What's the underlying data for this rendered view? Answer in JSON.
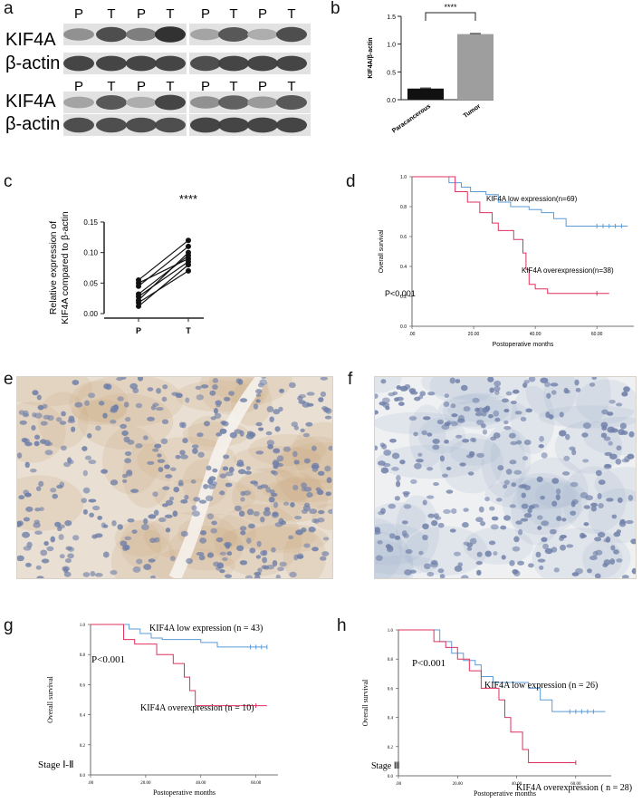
{
  "panels": {
    "a": {
      "letter": "a",
      "lane_labels_top": [
        "P",
        "T",
        "P",
        "T",
        "P",
        "T",
        "P",
        "T"
      ],
      "lane_labels_bottom": [
        "P",
        "T",
        "P",
        "T",
        "P",
        "T",
        "P",
        "T"
      ],
      "row_labels": [
        "KIF4A",
        "β-actin",
        "KIF4A",
        "β-actin"
      ],
      "band_intensity": {
        "kif4a_1": [
          0.45,
          0.8,
          0.55,
          0.95,
          0.35,
          0.75,
          0.3,
          0.8
        ],
        "actin_1": [
          0.85,
          0.85,
          0.85,
          0.85,
          0.8,
          0.85,
          0.85,
          0.85
        ],
        "kif4a_2": [
          0.35,
          0.75,
          0.3,
          0.85,
          0.45,
          0.7,
          0.4,
          0.75
        ],
        "actin_2": [
          0.8,
          0.8,
          0.8,
          0.8,
          0.85,
          0.85,
          0.85,
          0.85
        ]
      }
    },
    "b": {
      "letter": "b",
      "significance": "****",
      "chart_data": {
        "type": "bar",
        "categories": [
          "Paracancerous",
          "Tumor"
        ],
        "values": [
          0.2,
          1.18
        ],
        "errors": [
          0.01,
          0.01
        ],
        "colors": [
          "#111111",
          "#9e9e9e"
        ],
        "ylabel": "KIF4A/β-actin",
        "ylim": [
          0,
          1.5
        ],
        "yticks": [
          "0.0",
          "0.5",
          "1.0",
          "1.5"
        ]
      }
    },
    "c": {
      "letter": "c",
      "significance": "****",
      "chart_data": {
        "type": "line",
        "categories": [
          "P",
          "T"
        ],
        "ylabel_lines": [
          "Relative expression of",
          "KIF4A compared to β-actin"
        ],
        "ylim": [
          0,
          0.15
        ],
        "yticks": [
          "0.00",
          "0.05",
          "0.10",
          "0.15"
        ],
        "pairs": [
          [
            0.055,
            0.12
          ],
          [
            0.05,
            0.09
          ],
          [
            0.045,
            0.11
          ],
          [
            0.032,
            0.095
          ],
          [
            0.028,
            0.085
          ],
          [
            0.022,
            0.1
          ],
          [
            0.018,
            0.07
          ],
          [
            0.012,
            0.08
          ]
        ]
      }
    },
    "d": {
      "letter": "d",
      "pvalue": "P<0.001",
      "chart_data": {
        "type": "line",
        "xlabel": "Postoperative months",
        "ylabel": "Overall survival",
        "xlim": [
          0,
          72
        ],
        "ylim": [
          0,
          1
        ],
        "xticks": [
          ".00",
          "20.00",
          "40.00",
          "60.00"
        ],
        "xtick_values": [
          0,
          20,
          40,
          60
        ],
        "yticks": [
          "0.0",
          "0.2",
          "0.4",
          "0.6",
          "0.8",
          "1.0"
        ],
        "series": [
          {
            "name": "KIF4A low expression(n=69)",
            "color": "#5b9bd5",
            "steps": [
              [
                0,
                1
              ],
              [
                10,
                1
              ],
              [
                12,
                0.96
              ],
              [
                16,
                0.93
              ],
              [
                19,
                0.9
              ],
              [
                24,
                0.88
              ],
              [
                28,
                0.83
              ],
              [
                32,
                0.8
              ],
              [
                38,
                0.78
              ],
              [
                42,
                0.76
              ],
              [
                46,
                0.72
              ],
              [
                50,
                0.67
              ],
              [
                70,
                0.67
              ]
            ],
            "censors": [
              60,
              62,
              64,
              66,
              68
            ]
          },
          {
            "name": "KIF4A overexpression(n=38)",
            "color": "#e0305e",
            "steps": [
              [
                0,
                1
              ],
              [
                10,
                1
              ],
              [
                14,
                0.9
              ],
              [
                18,
                0.83
              ],
              [
                22,
                0.76
              ],
              [
                26,
                0.69
              ],
              [
                28,
                0.64
              ],
              [
                33,
                0.58
              ],
              [
                36,
                0.49
              ],
              [
                37,
                0.38
              ],
              [
                38,
                0.28
              ],
              [
                40,
                0.25
              ],
              [
                44,
                0.22
              ],
              [
                64,
                0.22
              ]
            ],
            "censors": [
              60
            ]
          }
        ]
      }
    },
    "e": {
      "letter": "e"
    },
    "f": {
      "letter": "f"
    },
    "g": {
      "letter": "g",
      "pvalue": "P<0.001",
      "stage": "Stage Ⅰ-Ⅱ",
      "chart_data": {
        "type": "line",
        "xlabel": "Postoperative months",
        "ylabel": "Overall survival",
        "xlim": [
          0,
          68
        ],
        "ylim": [
          0,
          1
        ],
        "xticks": [
          ".00",
          "20.00",
          "40.00",
          "60.00"
        ],
        "xtick_values": [
          0,
          20,
          40,
          60
        ],
        "yticks": [
          "0.0",
          "0.2",
          "0.4",
          "0.6",
          "0.8",
          "1.0"
        ],
        "series": [
          {
            "name": "KIF4A low expression (n = 43)",
            "color": "#5b9bd5",
            "steps": [
              [
                0,
                1
              ],
              [
                12,
                1
              ],
              [
                14,
                0.97
              ],
              [
                18,
                0.94
              ],
              [
                22,
                0.91
              ],
              [
                26,
                0.9
              ],
              [
                40,
                0.88
              ],
              [
                46,
                0.85
              ],
              [
                64,
                0.85
              ]
            ],
            "censors": [
              58,
              60,
              62,
              64
            ]
          },
          {
            "name": "KIF4A overexpression (n = 10)",
            "color": "#e0305e",
            "steps": [
              [
                0,
                1
              ],
              [
                10,
                1
              ],
              [
                12,
                0.9
              ],
              [
                16,
                0.87
              ],
              [
                24,
                0.8
              ],
              [
                30,
                0.74
              ],
              [
                34,
                0.65
              ],
              [
                36,
                0.56
              ],
              [
                38,
                0.46
              ],
              [
                64,
                0.46
              ]
            ],
            "censors": [
              60
            ]
          }
        ]
      }
    },
    "h": {
      "letter": "h",
      "pvalue": "P<0.001",
      "stage": "Stage Ⅲ",
      "chart_data": {
        "type": "line",
        "xlabel": "Postoperative months",
        "ylabel": "Overall survival",
        "xlim": [
          0,
          72
        ],
        "ylim": [
          0,
          1
        ],
        "xticks": [
          ".00",
          "20.00",
          "40.00",
          "60.00"
        ],
        "xtick_values": [
          0,
          20,
          40,
          60
        ],
        "yticks": [
          "0.0",
          "0.2",
          "0.4",
          "0.6",
          "0.8",
          "1.0"
        ],
        "series": [
          {
            "name": "KIF4A low expression (n = 26)",
            "color": "#5b9bd5",
            "steps": [
              [
                0,
                1
              ],
              [
                10,
                1
              ],
              [
                14,
                0.92
              ],
              [
                18,
                0.84
              ],
              [
                22,
                0.79
              ],
              [
                26,
                0.76
              ],
              [
                28,
                0.68
              ],
              [
                32,
                0.64
              ],
              [
                44,
                0.6
              ],
              [
                48,
                0.52
              ],
              [
                52,
                0.44
              ],
              [
                70,
                0.44
              ]
            ],
            "censors": [
              58,
              60,
              62,
              64,
              66
            ]
          },
          {
            "name": "KIF4A overexpression ( n = 28)",
            "color": "#e0305e",
            "steps": [
              [
                0,
                1
              ],
              [
                10,
                1
              ],
              [
                12,
                0.92
              ],
              [
                16,
                0.88
              ],
              [
                20,
                0.8
              ],
              [
                24,
                0.72
              ],
              [
                28,
                0.6
              ],
              [
                34,
                0.52
              ],
              [
                36,
                0.4
              ],
              [
                38,
                0.3
              ],
              [
                42,
                0.18
              ],
              [
                44,
                0.09
              ],
              [
                60,
                0.09
              ]
            ],
            "censors": [
              60
            ]
          }
        ]
      }
    }
  }
}
